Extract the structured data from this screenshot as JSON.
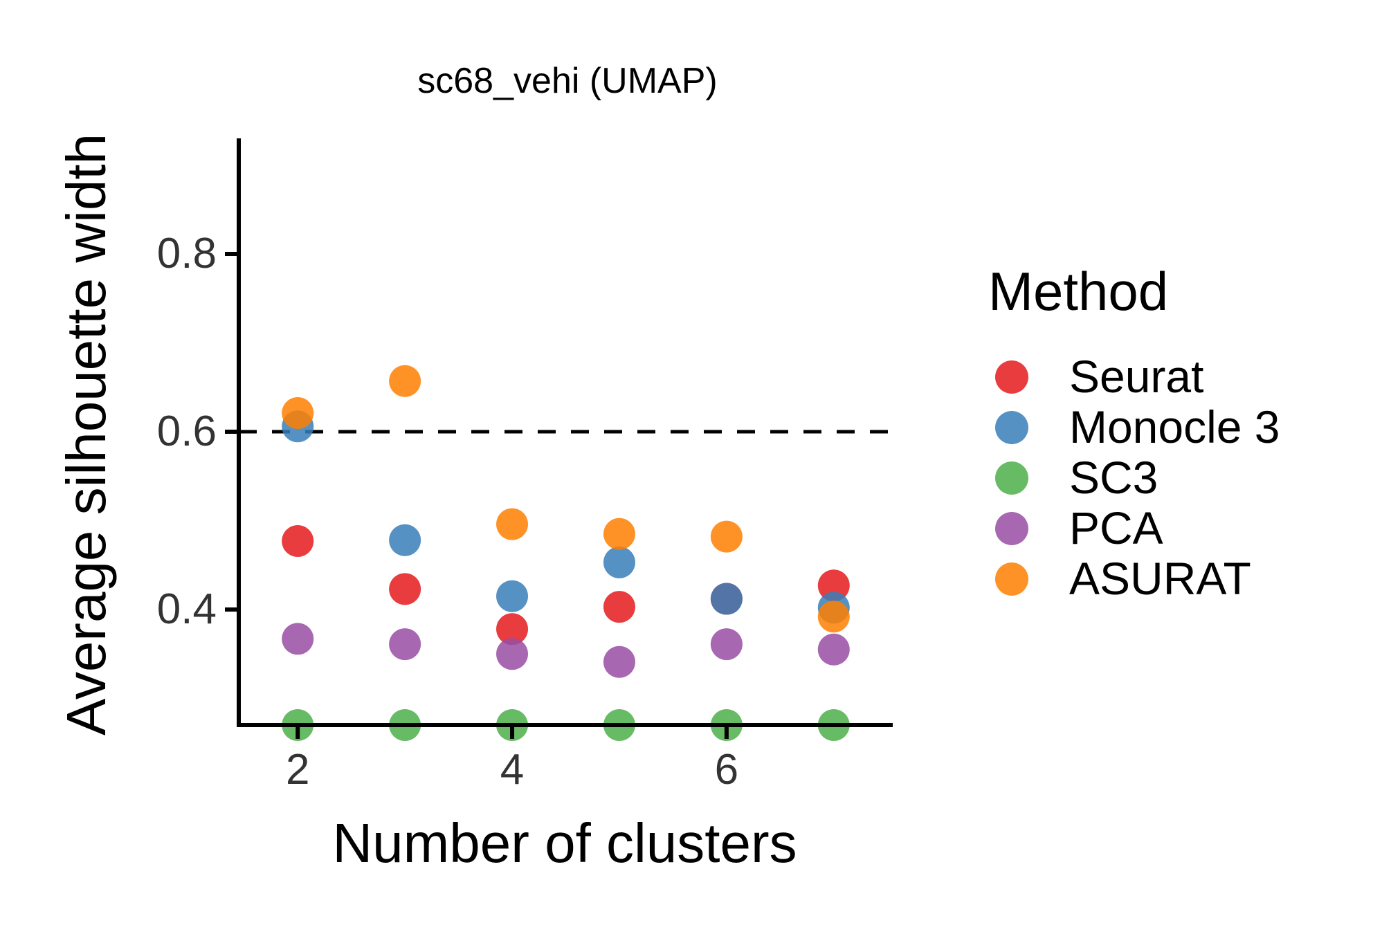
{
  "chart_data": {
    "type": "scatter",
    "title": "sc68_vehi (UMAP)",
    "xlabel": "Number of clusters",
    "ylabel": "Average silhouette width",
    "xlim": [
      1.45,
      7.55
    ],
    "ylim": [
      0.27,
      0.93
    ],
    "xticks": [
      2,
      4,
      6
    ],
    "yticks": [
      0.4,
      0.6,
      0.8
    ],
    "xtick_labels": [
      "2",
      "4",
      "6"
    ],
    "ytick_labels": [
      "0.4",
      "0.6",
      "0.8"
    ],
    "reference_line": 0.6,
    "grid": false,
    "legend": {
      "title": "Method",
      "position": "right"
    },
    "x": [
      2,
      3,
      4,
      5,
      6,
      7
    ],
    "series": [
      {
        "name": "Seurat",
        "color": "#E41A1C",
        "values": [
          0.477,
          0.423,
          0.378,
          0.403,
          0.412,
          0.427
        ]
      },
      {
        "name": "Monocle 3",
        "color": "#377EB8",
        "values": [
          0.606,
          0.478,
          0.415,
          0.453,
          0.412,
          0.402
        ]
      },
      {
        "name": "SC3",
        "color": "#4DAF4A",
        "values": [
          0.27,
          0.27,
          0.27,
          0.27,
          0.27,
          0.27
        ]
      },
      {
        "name": "PCA",
        "color": "#984EA3",
        "values": [
          0.367,
          0.361,
          0.35,
          0.341,
          0.361,
          0.355
        ]
      },
      {
        "name": "ASURAT",
        "color": "#FF7F00",
        "values": [
          0.621,
          0.657,
          0.496,
          0.485,
          0.482,
          0.392
        ]
      }
    ]
  }
}
